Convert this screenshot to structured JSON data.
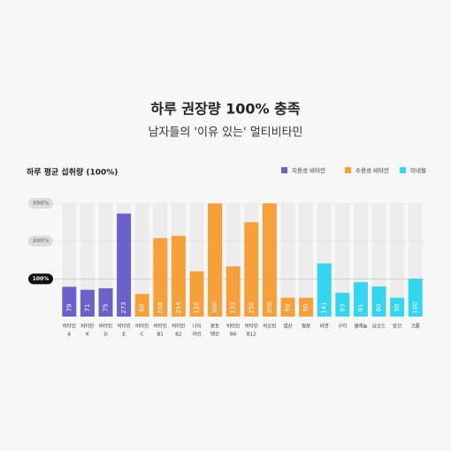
{
  "header": {
    "title": "하루 권장량 100% 충족",
    "subtitle": "남자들의 '이유 있는' 멀티비타민"
  },
  "chart_data": {
    "type": "bar",
    "title": "하루 평균 섭취량 (100%)",
    "categories": [
      [
        "비타민",
        "A"
      ],
      [
        "비타민",
        "K"
      ],
      [
        "비타민",
        "D"
      ],
      [
        "비타민",
        "E"
      ],
      [
        "비타민",
        "C"
      ],
      [
        "비타민",
        "B1"
      ],
      [
        "비타민",
        "B2"
      ],
      [
        "나이",
        "아신"
      ],
      [
        "판토",
        "텐산"
      ],
      [
        "비타민",
        "B6"
      ],
      [
        "비타민",
        "B12"
      ],
      [
        "비오틴"
      ],
      [
        "엽산"
      ],
      [
        "철분"
      ],
      [
        "아연"
      ],
      [
        "구리"
      ],
      [
        "셀레늄"
      ],
      [
        "요오드"
      ],
      [
        "망간"
      ],
      [
        "크롬"
      ]
    ],
    "series": [
      {
        "name": "지용성 비타민",
        "color": "#6a62c8",
        "values": [
          79,
          71,
          75,
          273,
          null,
          null,
          null,
          null,
          null,
          null,
          null,
          null,
          null,
          null,
          null,
          null,
          null,
          null,
          null,
          null
        ]
      },
      {
        "name": "수용성 비타민",
        "color": "#f6a03c",
        "values": [
          null,
          null,
          null,
          null,
          60,
          208,
          214,
          120,
          300,
          133,
          250,
          300,
          50,
          50,
          null,
          null,
          null,
          null,
          null,
          null
        ]
      },
      {
        "name": "미네랄",
        "color": "#35d5ef",
        "values": [
          null,
          null,
          null,
          null,
          null,
          null,
          null,
          null,
          null,
          null,
          null,
          null,
          null,
          null,
          141,
          63,
          91,
          80,
          50,
          100
        ]
      }
    ],
    "ylim": [
      0,
      300
    ],
    "yticks": [
      {
        "value": 100,
        "label": "100%"
      },
      {
        "value": 200,
        "label": "200%"
      },
      {
        "value": 300,
        "label": "300%"
      }
    ],
    "highlight_tick": 100
  }
}
